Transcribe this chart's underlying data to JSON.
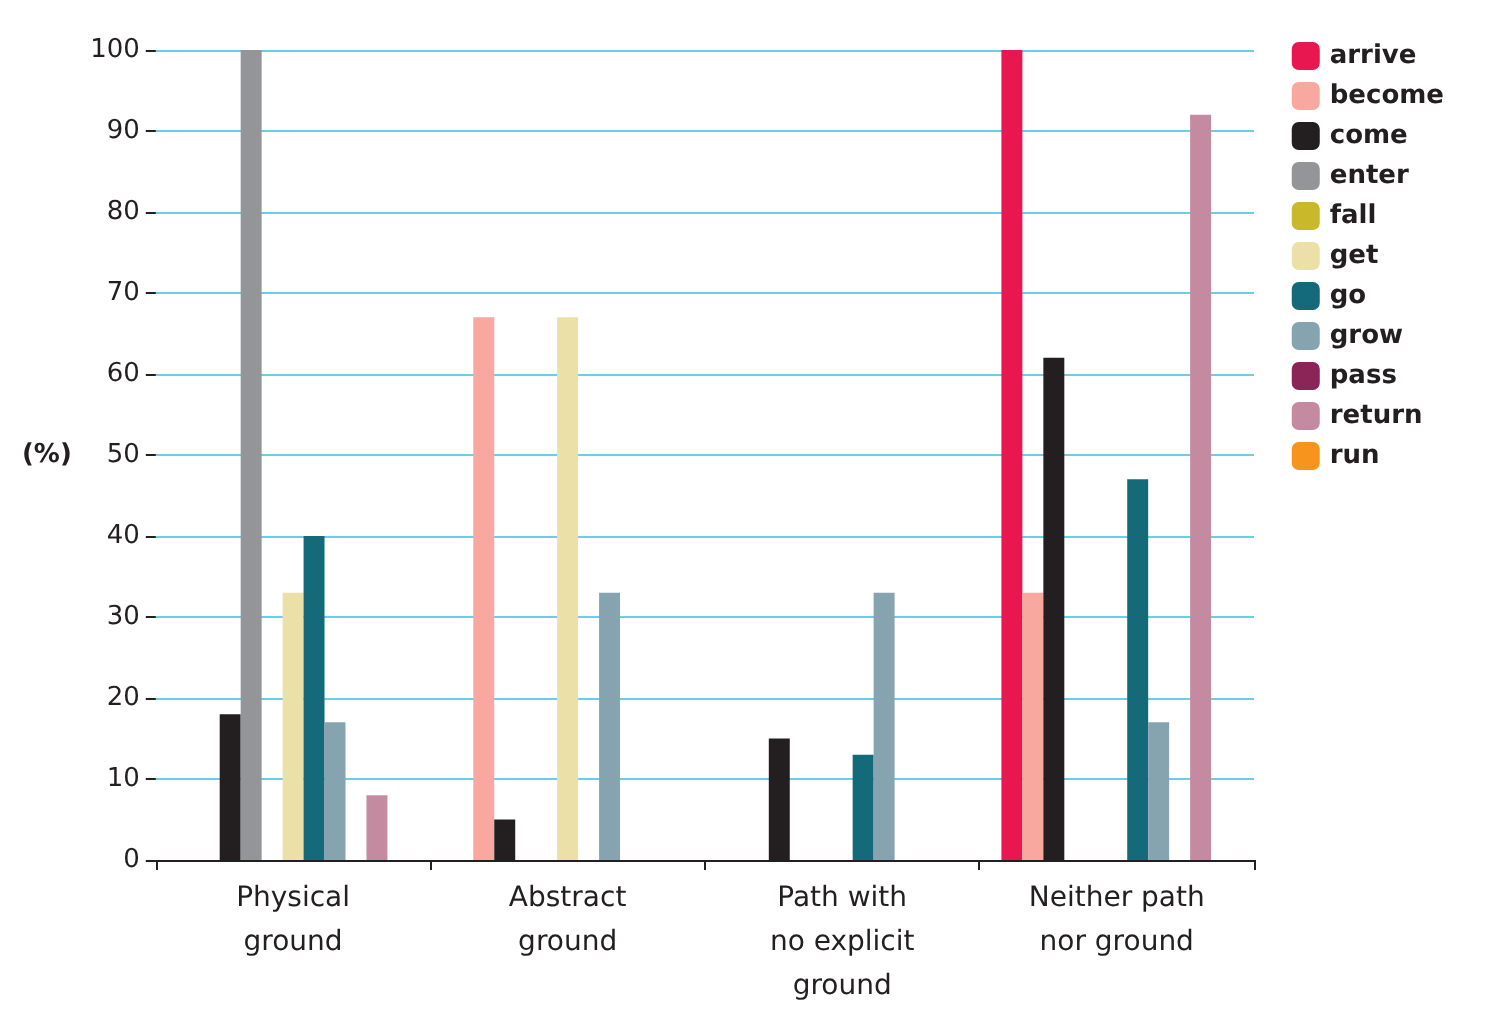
{
  "chart_data": {
    "type": "bar",
    "ylabel": "(%)",
    "categories": [
      "Physical\nground",
      "Abstract\nground",
      "Path with\nno explicit\nground",
      "Neither path\nnor ground"
    ],
    "ylim": [
      0,
      100
    ],
    "yticks": [
      0,
      10,
      20,
      30,
      40,
      50,
      60,
      70,
      80,
      90,
      100
    ],
    "grid": "y",
    "legend": "right",
    "series": [
      {
        "name": "arrive",
        "color": "#e8174f",
        "values": [
          null,
          null,
          null,
          100
        ]
      },
      {
        "name": "become",
        "color": "#f9a8a0",
        "values": [
          null,
          67,
          null,
          33
        ]
      },
      {
        "name": "come",
        "color": "#231f20",
        "values": [
          18,
          5,
          15,
          62
        ]
      },
      {
        "name": "enter",
        "color": "#939598",
        "values": [
          100,
          null,
          null,
          null
        ]
      },
      {
        "name": "fall",
        "color": "#c9b82a",
        "values": [
          null,
          null,
          null,
          null
        ]
      },
      {
        "name": "get",
        "color": "#ebe0a8",
        "values": [
          33,
          67,
          null,
          null
        ]
      },
      {
        "name": "go",
        "color": "#156a7a",
        "values": [
          40,
          null,
          13,
          47
        ]
      },
      {
        "name": "grow",
        "color": "#86a3b0",
        "values": [
          17,
          33,
          33,
          17
        ]
      },
      {
        "name": "pass",
        "color": "#8b2457",
        "values": [
          null,
          null,
          null,
          null
        ]
      },
      {
        "name": "return",
        "color": "#c48ba0",
        "values": [
          8,
          null,
          null,
          92
        ]
      },
      {
        "name": "run",
        "color": "#f7941d",
        "values": [
          null,
          null,
          null,
          null
        ]
      }
    ]
  }
}
